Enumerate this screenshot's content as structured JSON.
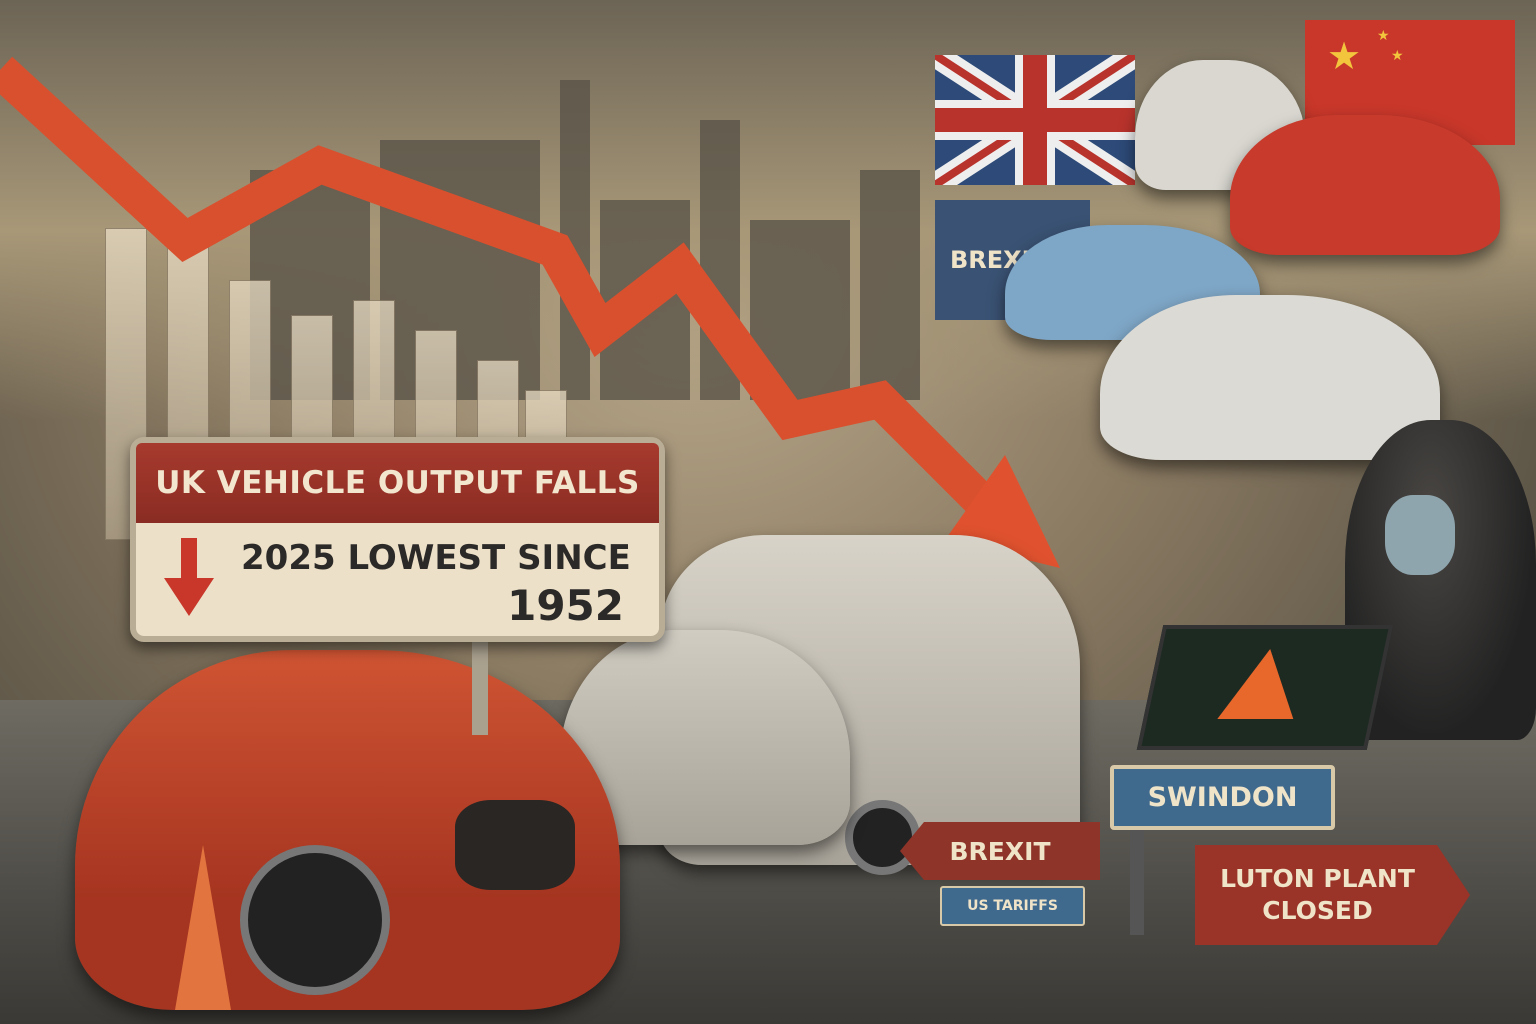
{
  "headline_sign": {
    "title": "UK VEHICLE OUTPUT FALLS",
    "line1": "2025 LOWEST SINCE",
    "line2": "1952",
    "icon": "down-arrow-icon"
  },
  "flag_sign": {
    "label": "BREXIT"
  },
  "road_signs": {
    "swindon": "SWINDON",
    "brexit": "BREXIT",
    "us_tariffs": "US TARIFFS",
    "luton": "LUTON PLANT CLOSED"
  },
  "colors": {
    "trend_arrow": "#e0522f",
    "sign_red": "#9a3328",
    "sign_blue": "#3f6a8e",
    "sign_cream": "#ece0c8"
  }
}
